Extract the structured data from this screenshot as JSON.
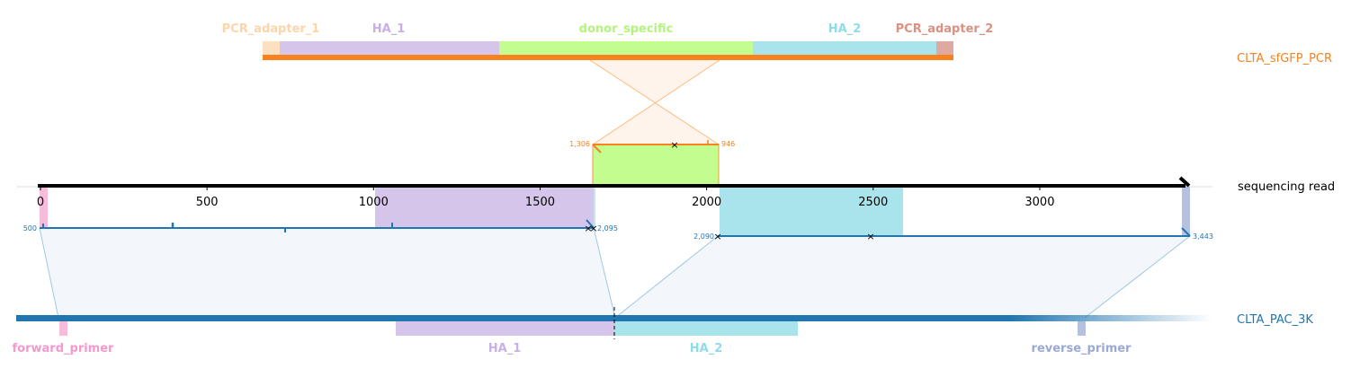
{
  "sequences": {
    "pcr": {
      "name": "CLTA_sfGFP_PCR",
      "color": "#f7821e"
    },
    "read": {
      "name": "sequencing read",
      "color": "#000000"
    },
    "ref": {
      "name": "CLTA_PAC_3K",
      "color": "#2176b0"
    }
  },
  "pcr_features": [
    {
      "name": "PCR_adapter_1",
      "color": "#fde0bf",
      "label_color": "#fcd5a8"
    },
    {
      "name": "HA_1",
      "color": "#d6c5ea",
      "label_color": "#c7b0e6"
    },
    {
      "name": "donor_specific",
      "color": "#c4fd8f",
      "label_color": "#b3f57a"
    },
    {
      "name": "HA_2",
      "color": "#a9e3ec",
      "label_color": "#8fdce8"
    },
    {
      "name": "PCR_adapter_2",
      "color": "#e0a9a0",
      "label_color": "#d89282"
    }
  ],
  "read_axis": {
    "min": 0,
    "max": 3443,
    "ticks": [
      {
        "value": 0,
        "label": "0"
      },
      {
        "value": 500,
        "label": "500"
      },
      {
        "value": 1000,
        "label": "1000"
      },
      {
        "value": 1500,
        "label": "1500"
      },
      {
        "value": 2000,
        "label": "2000"
      },
      {
        "value": 2500,
        "label": "2500"
      },
      {
        "value": 3000,
        "label": "3000"
      }
    ]
  },
  "alignments": {
    "pcr_to_read": {
      "read_start": 1586,
      "read_end": 1950,
      "start_label": "1,306",
      "end_label": "946"
    },
    "read_to_ref_1": {
      "read_start": 5,
      "read_end": 1595,
      "start_label": "500",
      "end_label": "2,095"
    },
    "read_to_ref_2": {
      "read_start": 1950,
      "read_end": 3443,
      "start_label": "2,090",
      "end_label": "3,443"
    }
  },
  "ref_features": [
    {
      "name": "forward_primer",
      "color": "#f8bbd9",
      "label_color": "#f598cc"
    },
    {
      "name": "HA_1",
      "color": "#d6c5ea",
      "label_color": "#c7b0e6"
    },
    {
      "name": "HA_2",
      "color": "#a9e3ec",
      "label_color": "#8fdce8"
    },
    {
      "name": "reverse_primer",
      "color": "#b6c1e0",
      "label_color": "#9aa9d6"
    }
  ]
}
